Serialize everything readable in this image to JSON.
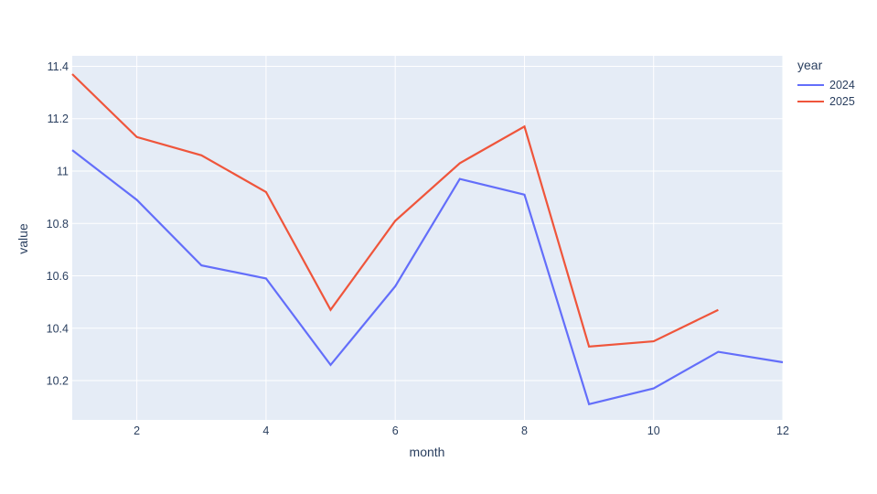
{
  "chart_data": {
    "type": "line",
    "title": "",
    "xlabel": "month",
    "ylabel": "value",
    "legend": {
      "title": "year",
      "position": "top-right-outside"
    },
    "xlim": [
      1,
      12
    ],
    "ylim": [
      10.05,
      11.44
    ],
    "grid": true,
    "xticks": {
      "values": [
        2,
        4,
        6,
        8,
        10,
        12
      ],
      "labels": [
        "2",
        "4",
        "6",
        "8",
        "10",
        "12"
      ]
    },
    "yticks": {
      "values": [
        10.2,
        10.4,
        10.6,
        10.8,
        11.0,
        11.2,
        11.4
      ],
      "labels": [
        "10.2",
        "10.4",
        "10.6",
        "10.8",
        "11",
        "11.2",
        "11.4"
      ]
    },
    "colors": {
      "plot_bg": "#e5ecf6",
      "grid": "#ffffff",
      "text": "#2a3f5f"
    },
    "series": [
      {
        "name": "2024",
        "color": "#636efa",
        "x": [
          1,
          2,
          3,
          4,
          5,
          6,
          7,
          8,
          9,
          10,
          11,
          12
        ],
        "y": [
          11.08,
          10.89,
          10.64,
          10.59,
          10.26,
          10.56,
          10.97,
          10.91,
          10.11,
          10.17,
          10.31,
          10.27
        ]
      },
      {
        "name": "2025",
        "color": "#ef553b",
        "x": [
          1,
          2,
          3,
          4,
          5,
          6,
          7,
          8,
          9,
          10,
          11
        ],
        "y": [
          11.37,
          11.13,
          11.06,
          10.92,
          10.47,
          10.81,
          11.03,
          11.17,
          10.33,
          10.35,
          10.47
        ]
      }
    ]
  }
}
